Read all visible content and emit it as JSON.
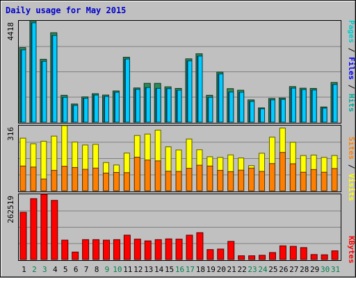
{
  "chart_data": {
    "type": "bar",
    "title": "Daily usage for May 2015",
    "categories": [
      "1",
      "2",
      "3",
      "4",
      "5",
      "6",
      "7",
      "8",
      "9",
      "10",
      "11",
      "12",
      "13",
      "14",
      "15",
      "16",
      "17",
      "18",
      "19",
      "20",
      "21",
      "22",
      "23",
      "24",
      "25",
      "26",
      "27",
      "28",
      "29",
      "30",
      "31"
    ],
    "weekend_days": [
      "2",
      "3",
      "9",
      "10",
      "16",
      "17",
      "23",
      "24",
      "30",
      "31"
    ],
    "panels": [
      {
        "id": "top",
        "ymax_label": "4418",
        "ylim": [
          0,
          4418
        ],
        "legend": [
          "Pages",
          "/",
          "Files",
          "/",
          "Hits"
        ],
        "legend_colors": [
          "#00cccc",
          "#000000",
          "#0000ff",
          "#000000",
          "#00aa99"
        ],
        "series": [
          {
            "name": "Hits",
            "color": "#2e8b57",
            "values": [
              3250,
              4418,
              2740,
              3900,
              1170,
              790,
              1100,
              1240,
              1180,
              1360,
              2830,
              1490,
              1690,
              1690,
              1540,
              1470,
              2760,
              2980,
              1170,
              2180,
              1460,
              1390,
              970,
              620,
              1030,
              1050,
              1550,
              1480,
              1470,
              660,
              1730
            ]
          },
          {
            "name": "Files",
            "color": "#0070ff",
            "values": [
              3150,
              4330,
              2650,
              3780,
              1080,
              730,
              1040,
              1180,
              1120,
              1300,
              2750,
              1430,
              1510,
              1470,
              1460,
              1390,
              2670,
              2880,
              1080,
              2100,
              1310,
              1300,
              900,
              580,
              970,
              990,
              1480,
              1420,
              1400,
              610,
              1640
            ]
          },
          {
            "name": "Pages",
            "color": "#00ccff",
            "values": [
              3150,
              4330,
              2650,
              3780,
              1080,
              730,
              1040,
              1180,
              1120,
              1300,
              2750,
              1430,
              1510,
              1470,
              1460,
              1390,
              2670,
              2880,
              1080,
              2100,
              1310,
              1300,
              900,
              580,
              970,
              990,
              1480,
              1420,
              1400,
              610,
              1640
            ]
          }
        ]
      },
      {
        "id": "middle",
        "ymax_label": "316",
        "ylim": [
          0,
          316
        ],
        "legend": [
          "Sites",
          "/",
          "Visits"
        ],
        "legend_colors": [
          "#ff8000",
          "#000000",
          "#ffff00"
        ],
        "series": [
          {
            "name": "Visits",
            "color": "#ffff00",
            "values": [
              255,
              228,
              240,
              265,
              316,
              236,
              222,
              225,
              137,
              125,
              183,
              268,
              275,
              294,
              213,
              198,
              251,
              199,
              165,
              162,
              174,
              159,
              122,
              182,
              260,
              304,
              235,
              171,
              173,
              162,
              171
            ]
          },
          {
            "name": "Sites",
            "color": "#ff8000",
            "values": [
              120,
              115,
              57,
              99,
              119,
              113,
              104,
              110,
              86,
              89,
              88,
              163,
              149,
              145,
              95,
              94,
              109,
              124,
              120,
              99,
              93,
              100,
              110,
              94,
              132,
              186,
              131,
              90,
              103,
              90,
              108
            ]
          }
        ]
      },
      {
        "id": "bottom",
        "ymax_label": "262519",
        "ylim": [
          0,
          262519
        ],
        "legend": [
          "KBytes"
        ],
        "legend_colors": [
          "#ff0000"
        ],
        "series": [
          {
            "name": "KBytes",
            "color": "#ff0000",
            "values": [
              190000,
              245000,
              262519,
              238000,
              78000,
              30000,
              80000,
              80000,
              78000,
              80000,
              98000,
              82000,
              75000,
              80000,
              83000,
              82000,
              98000,
              108000,
              40000,
              42000,
              73000,
              15000,
              15000,
              17000,
              28000,
              55000,
              53000,
              48000,
              20000,
              19000,
              35000
            ]
          }
        ]
      }
    ]
  }
}
